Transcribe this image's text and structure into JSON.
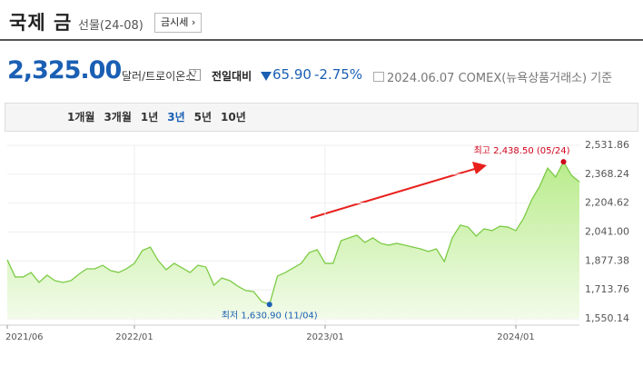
{
  "header": {
    "title": "국제 금",
    "subtitle": "선물(24-08)",
    "button": "금시세",
    "button_arrow": "›"
  },
  "quote": {
    "price": "2,325.00",
    "unit": "달러/트로이온스",
    "help": "?",
    "change_label": "전일대비",
    "change": "65.90",
    "change_rate": "-2.75%",
    "date": "2024.06.07",
    "source": "COMEX(뉴욕상품거래소) 기준"
  },
  "tabs": {
    "items": [
      "1개월",
      "3개월",
      "1년",
      "3년",
      "5년",
      "10년"
    ],
    "selected": 3
  },
  "chart_data": {
    "type": "line",
    "color": "#7ccb45",
    "categories": [
      "2021/06",
      null,
      null,
      null,
      null,
      null,
      null,
      null,
      null,
      null,
      null,
      null,
      null,
      null,
      null,
      null,
      "2022/01",
      null,
      null,
      null,
      null,
      null,
      null,
      null,
      null,
      null,
      null,
      null,
      null,
      null,
      null,
      null,
      null,
      null,
      null,
      null,
      null,
      null,
      null,
      null,
      "2023/01",
      null,
      null,
      null,
      null,
      null,
      null,
      null,
      null,
      null,
      null,
      null,
      null,
      null,
      null,
      null,
      null,
      null,
      null,
      null,
      null,
      null,
      null,
      null,
      "2024/01",
      null,
      null,
      null,
      null,
      null,
      null,
      null,
      null
    ],
    "values": [
      1884,
      1787,
      1787,
      1812,
      1756,
      1797,
      1766,
      1756,
      1766,
      1802,
      1833,
      1833,
      1853,
      1823,
      1812,
      1833,
      1864,
      1936,
      1956,
      1879,
      1828,
      1864,
      1838,
      1812,
      1853,
      1843,
      1740,
      1781,
      1766,
      1735,
      1710,
      1704,
      1648,
      1630.9,
      1792,
      1812,
      1838,
      1864,
      1925,
      1941,
      1864,
      1864,
      1992,
      2008,
      2023,
      1982,
      2008,
      1977,
      1967,
      1977,
      1967,
      1956,
      1946,
      1931,
      1946,
      1874,
      2008,
      2080,
      2069,
      2018,
      2059,
      2049,
      2074,
      2069,
      2049,
      2121,
      2224,
      2301,
      2403,
      2352,
      2438.5,
      2362,
      2325
    ],
    "ylim": [
      1550.14,
      2531.86
    ],
    "yticks": [
      {
        "value": 2531.86,
        "label": "2,531.86"
      },
      {
        "value": 2368.24,
        "label": "2,368.24"
      },
      {
        "value": 2204.62,
        "label": "2,204.62"
      },
      {
        "value": 2041.0,
        "label": "2,041.00"
      },
      {
        "value": 1877.38,
        "label": "1,877.38"
      },
      {
        "value": 1713.76,
        "label": "1,713.76"
      },
      {
        "value": 1550.14,
        "label": "1,550.14"
      }
    ],
    "grid": true,
    "annotations": [
      {
        "text": "최고 2,438.50 (05/24)",
        "color": "#d0021b",
        "at": "max"
      },
      {
        "text": "최저 1,630.90 (11/04)",
        "color": "#1a5fb4",
        "at": "min"
      }
    ]
  }
}
